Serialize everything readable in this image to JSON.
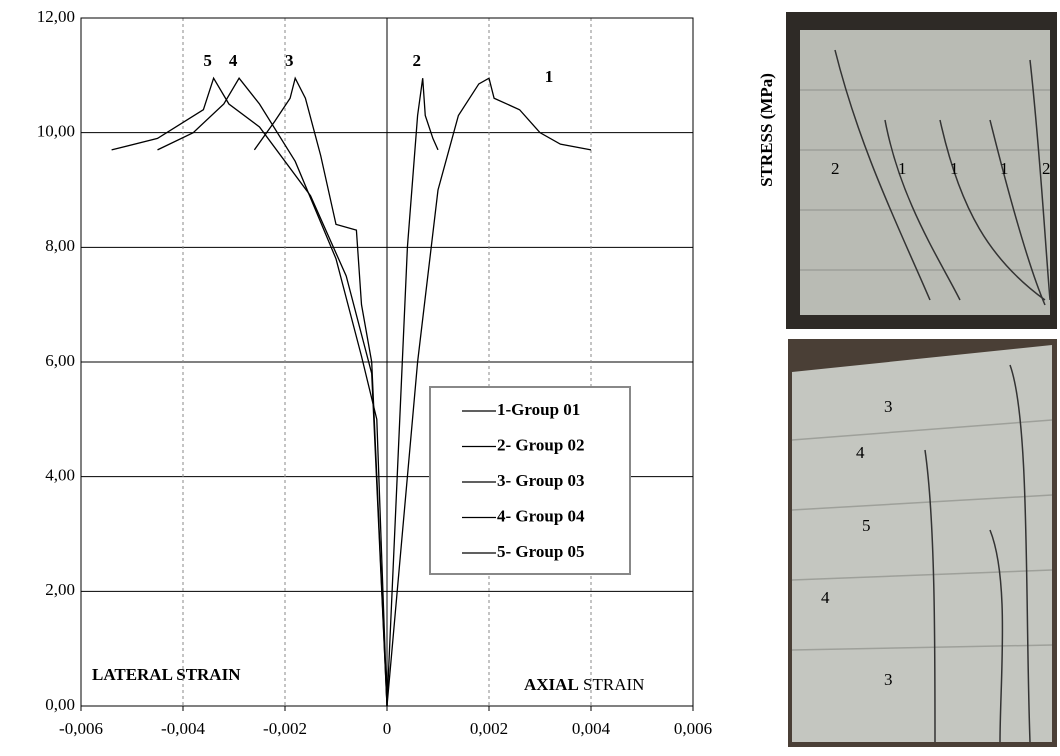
{
  "chart_data": {
    "type": "line",
    "y_label": "STRESS (MPa)",
    "x_label_left": "LATERAL  STRAIN",
    "x_label_right": [
      "AXIAL",
      "STRAIN"
    ],
    "xlim": [
      -0.006,
      0.006
    ],
    "xticks": [
      {
        "value": -0.006,
        "label": "-0,006"
      },
      {
        "value": -0.004,
        "label": "-0,004"
      },
      {
        "value": -0.002,
        "label": "-0,002"
      },
      0,
      {
        "value": 0.002,
        "label": "0,002"
      },
      {
        "value": 0.004,
        "label": "0,004"
      },
      {
        "value": 0.006,
        "label": "0,006"
      }
    ],
    "ylim": [
      0,
      12
    ],
    "yticks": [
      {
        "value": 0,
        "label": "0,00"
      },
      {
        "value": 2,
        "label": "2,00"
      },
      {
        "value": 4,
        "label": "4,00"
      },
      {
        "value": 6,
        "label": "6,00"
      },
      {
        "value": 8,
        "label": "8,00"
      },
      {
        "value": 10,
        "label": "10,00"
      },
      {
        "value": 12,
        "label": "12,00"
      }
    ],
    "grid": true,
    "series": [
      {
        "name": "1-Group 01",
        "label": "1",
        "color": "#000000",
        "x": [
          0,
          0.0003,
          0.0006,
          0.001,
          0.0014,
          0.0018,
          0.002,
          0.0021,
          0.0026,
          0.003,
          0.0034,
          0.004
        ],
        "values": [
          0,
          3,
          6,
          9,
          10.3,
          10.85,
          10.95,
          10.6,
          10.4,
          10.0,
          9.8,
          9.7
        ]
      },
      {
        "name": "2- Group 02",
        "label": "2",
        "color": "#000000",
        "x": [
          0,
          0.0002,
          0.0004,
          0.0006,
          0.0007,
          0.00075,
          0.0009,
          0.001
        ],
        "values": [
          0,
          4,
          8,
          10.3,
          10.95,
          10.3,
          9.9,
          9.7
        ]
      },
      {
        "name": "3- Group 03",
        "label": "3",
        "color": "#000000",
        "x": [
          0,
          -0.0002,
          -0.0003,
          -0.0005,
          -0.0006,
          -0.001,
          -0.0013,
          -0.0016,
          -0.0018,
          -0.0019,
          -0.0022,
          -0.0026
        ],
        "values": [
          0,
          4,
          6,
          7,
          8.3,
          8.4,
          9.6,
          10.6,
          10.95,
          10.6,
          10.2,
          9.7
        ]
      },
      {
        "name": "4- Group 04",
        "label": "4",
        "color": "#000000",
        "x": [
          0,
          -0.0002,
          -0.0005,
          -0.001,
          -0.0018,
          -0.0025,
          -0.0029,
          -0.0032,
          -0.0038,
          -0.0045
        ],
        "values": [
          0,
          5,
          6.1,
          7.8,
          9.5,
          10.5,
          10.95,
          10.5,
          10.0,
          9.7
        ]
      },
      {
        "name": "5- Group 05",
        "label": "5",
        "color": "#000000",
        "x": [
          0,
          -0.0003,
          -0.0008,
          -0.0015,
          -0.0025,
          -0.0031,
          -0.0034,
          -0.0036,
          -0.0045,
          -0.0054
        ],
        "values": [
          0,
          5.8,
          7.5,
          8.9,
          10.1,
          10.5,
          10.95,
          10.4,
          9.9,
          9.7
        ]
      }
    ]
  },
  "photos": [
    {
      "labels": [
        "2",
        "1",
        "1",
        "1",
        "2"
      ]
    },
    {
      "labels": [
        "3",
        "4",
        "5",
        "4",
        "3"
      ]
    }
  ]
}
